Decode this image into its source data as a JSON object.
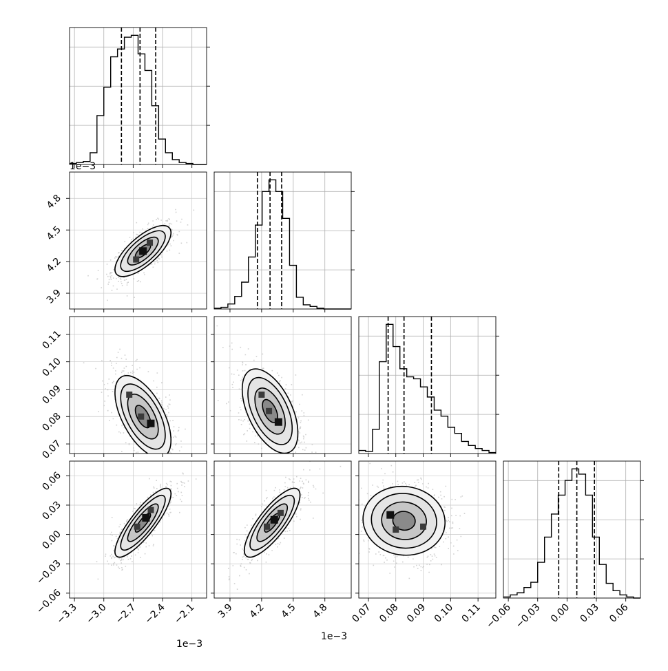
{
  "chart_data": {
    "type": "corner",
    "grid": true,
    "quantile_lines": "dashed",
    "parameters": [
      {
        "range": [
          -3.35,
          -1.95
        ],
        "ticks": [
          -3.3,
          -3.0,
          -2.7,
          -2.4,
          -2.1
        ],
        "tick_labels": [
          "−3.3",
          "−3.0",
          "−2.7",
          "−2.4",
          "−2.1"
        ],
        "offset_label": "1e−3",
        "quantiles": [
          -2.82,
          -2.63,
          -2.47
        ],
        "histogram": {
          "bin_start": -3.35,
          "bin_width": 0.07,
          "counts": [
            1,
            2,
            3,
            12,
            50,
            79,
            110,
            118,
            130,
            132,
            113,
            96,
            60,
            26,
            12,
            5,
            2,
            1,
            0,
            0
          ]
        }
      },
      {
        "range": [
          3.75,
          5.05
        ],
        "ticks": [
          3.9,
          4.2,
          4.5,
          4.8
        ],
        "tick_labels": [
          "3.9",
          "4.2",
          "4.5",
          "4.8"
        ],
        "offset_label": "1e−3",
        "quantiles": [
          4.16,
          4.28,
          4.39
        ],
        "histogram": {
          "bin_start": 3.75,
          "bin_width": 0.065,
          "counts": [
            1,
            2,
            6,
            15,
            32,
            62,
            100,
            140,
            154,
            140,
            108,
            52,
            14,
            5,
            3,
            1,
            0,
            0,
            0,
            0
          ]
        }
      },
      {
        "range": [
          0.0665,
          0.1165
        ],
        "ticks": [
          0.07,
          0.08,
          0.09,
          0.1,
          0.11
        ],
        "tick_labels": [
          "0.07",
          "0.08",
          "0.09",
          "0.10",
          "0.11"
        ],
        "quantiles": [
          0.0772,
          0.083,
          0.093
        ],
        "histogram": {
          "bin_start": 0.0665,
          "bin_width": 0.0025,
          "counts": [
            3,
            2,
            24,
            91,
            128,
            106,
            84,
            76,
            74,
            66,
            56,
            43,
            37,
            26,
            20,
            12,
            8,
            5,
            3,
            1
          ]
        }
      },
      {
        "range": [
          -0.065,
          0.075
        ],
        "ticks": [
          -0.06,
          -0.03,
          0.0,
          0.03,
          0.06
        ],
        "tick_labels": [
          "−0.06",
          "−0.03",
          "0.00",
          "0.03",
          "0.06"
        ],
        "quantiles": [
          -0.0085,
          0.01,
          0.028
        ],
        "histogram": {
          "bin_start": -0.065,
          "bin_width": 0.007,
          "counts": [
            1,
            3,
            5,
            10,
            15,
            34,
            58,
            80,
            98,
            112,
            123,
            118,
            98,
            58,
            32,
            14,
            7,
            3,
            1,
            0
          ]
        }
      }
    ],
    "pairs": [
      {
        "x": 0,
        "y": 1,
        "center": [
          -2.6,
          4.3
        ],
        "spread": [
          0.13,
          0.11
        ],
        "rho": 0.72,
        "anchors": [
          [
            -2.6,
            4.3
          ],
          [
            -2.53,
            4.38
          ],
          [
            -2.67,
            4.22
          ]
        ]
      },
      {
        "x": 0,
        "y": 2,
        "center": [
          -2.6,
          0.08
        ],
        "spread": [
          0.13,
          0.0068
        ],
        "rho": -0.58,
        "anchors": [
          [
            -2.52,
            0.0775
          ],
          [
            -2.74,
            0.088
          ],
          [
            -2.62,
            0.08
          ]
        ]
      },
      {
        "x": 1,
        "y": 2,
        "center": [
          4.28,
          0.082
        ],
        "spread": [
          0.12,
          0.007
        ],
        "rho": -0.52,
        "anchors": [
          [
            4.36,
            0.078
          ],
          [
            4.2,
            0.088
          ],
          [
            4.27,
            0.082
          ]
        ]
      },
      {
        "x": 0,
        "y": 3,
        "center": [
          -2.6,
          0.012
        ],
        "spread": [
          0.13,
          0.016
        ],
        "rho": 0.84,
        "anchors": [
          [
            -2.57,
            0.017
          ],
          [
            -2.66,
            0.008
          ],
          [
            -2.52,
            0.025
          ]
        ]
      },
      {
        "x": 1,
        "y": 3,
        "center": [
          4.3,
          0.012
        ],
        "spread": [
          0.12,
          0.016
        ],
        "rho": 0.8,
        "anchors": [
          [
            4.32,
            0.015
          ],
          [
            4.38,
            0.022
          ],
          [
            4.25,
            0.008
          ]
        ]
      },
      {
        "x": 2,
        "y": 3,
        "center": [
          0.083,
          0.014
        ],
        "spread": [
          0.0068,
          0.016
        ],
        "rho": -0.05,
        "anchors": [
          [
            0.078,
            0.02
          ],
          [
            0.09,
            0.008
          ],
          [
            0.08,
            0.005
          ]
        ]
      }
    ]
  }
}
